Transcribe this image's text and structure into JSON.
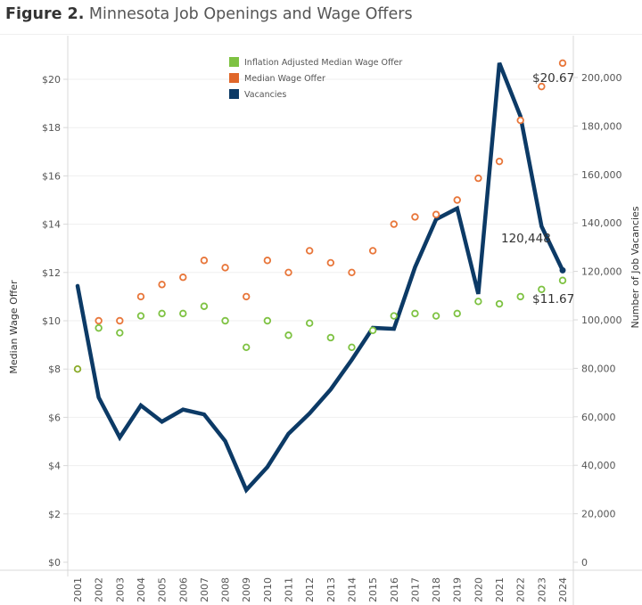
{
  "title": {
    "bold": "Figure 2.",
    "rest": " Minnesota Job Openings and Wage Offers"
  },
  "chart_data": {
    "type": "line",
    "title": "Figure 2. Minnesota Job Openings and Wage Offers",
    "x": [
      2001,
      2002,
      2003,
      2004,
      2005,
      2006,
      2007,
      2008,
      2009,
      2010,
      2011,
      2012,
      2013,
      2014,
      2015,
      2016,
      2017,
      2018,
      2019,
      2020,
      2021,
      2022,
      2023,
      2024
    ],
    "x_tick_labels": [
      "2001",
      "2002",
      "2003",
      "2004",
      "2005",
      "2006",
      "2007",
      "2008",
      "2009",
      "2010",
      "2011",
      "2012",
      "2013",
      "2014",
      "2015",
      "2016",
      "2017",
      "2018",
      "2019",
      "2020",
      "2021",
      "2022",
      "2023",
      "2024"
    ],
    "ylabel_left": "Median Wage Offer",
    "ylabel_right": "Number of Job Vacancies",
    "ylim_left": [
      0,
      21.2
    ],
    "ylim_right": [
      0,
      212000
    ],
    "left_tick_labels": [
      "$0",
      "$2",
      "$4",
      "$6",
      "$8",
      "$10",
      "$12",
      "$14",
      "$16",
      "$18",
      "$20"
    ],
    "left_ticks": [
      0,
      2,
      4,
      6,
      8,
      10,
      12,
      14,
      16,
      18,
      20
    ],
    "right_tick_labels": [
      "0",
      "20,000",
      "40,000",
      "60,000",
      "80,000",
      "100,000",
      "120,000",
      "140,000",
      "160,000",
      "180,000",
      "200,000"
    ],
    "right_ticks": [
      0,
      20000,
      40000,
      60000,
      80000,
      100000,
      120000,
      140000,
      160000,
      180000,
      200000
    ],
    "grid": true,
    "legend_position": "top-center",
    "series": [
      {
        "name": "Inflation Adjusted Median Wage Offer",
        "type": "scatter",
        "axis": "left",
        "color": "#7ec242",
        "values": [
          8.0,
          9.7,
          9.5,
          10.2,
          10.3,
          10.3,
          10.6,
          10.0,
          8.9,
          10.0,
          9.4,
          9.9,
          9.3,
          8.9,
          9.6,
          10.2,
          10.3,
          10.2,
          10.3,
          10.8,
          10.7,
          11.0,
          11.3,
          11.67
        ]
      },
      {
        "name": "Median Wage Offer",
        "type": "scatter",
        "axis": "left",
        "color": "#e8763a",
        "values": [
          8.0,
          10.0,
          10.0,
          11.0,
          11.5,
          11.8,
          12.5,
          12.2,
          11.0,
          12.5,
          12.0,
          12.9,
          12.4,
          12.0,
          12.9,
          14.0,
          14.3,
          14.4,
          15.0,
          15.9,
          16.6,
          18.3,
          19.7,
          20.67
        ]
      },
      {
        "name": "Vacancies",
        "type": "line",
        "axis": "right",
        "color": "#0c3a66",
        "values": [
          114000,
          68000,
          51500,
          64700,
          58000,
          63000,
          61000,
          50000,
          29800,
          39300,
          53000,
          61400,
          71300,
          83500,
          96700,
          96300,
          121700,
          141500,
          146000,
          110700,
          206000,
          184000,
          138600,
          120448
        ]
      }
    ],
    "annotations": [
      {
        "text": "$20.67",
        "series": "Median Wage Offer",
        "x": 2024
      },
      {
        "text": "120,448",
        "series": "Vacancies",
        "x": 2024
      },
      {
        "text": "$11.67",
        "series": "Inflation Adjusted Median Wage Offer",
        "x": 2024
      }
    ]
  }
}
